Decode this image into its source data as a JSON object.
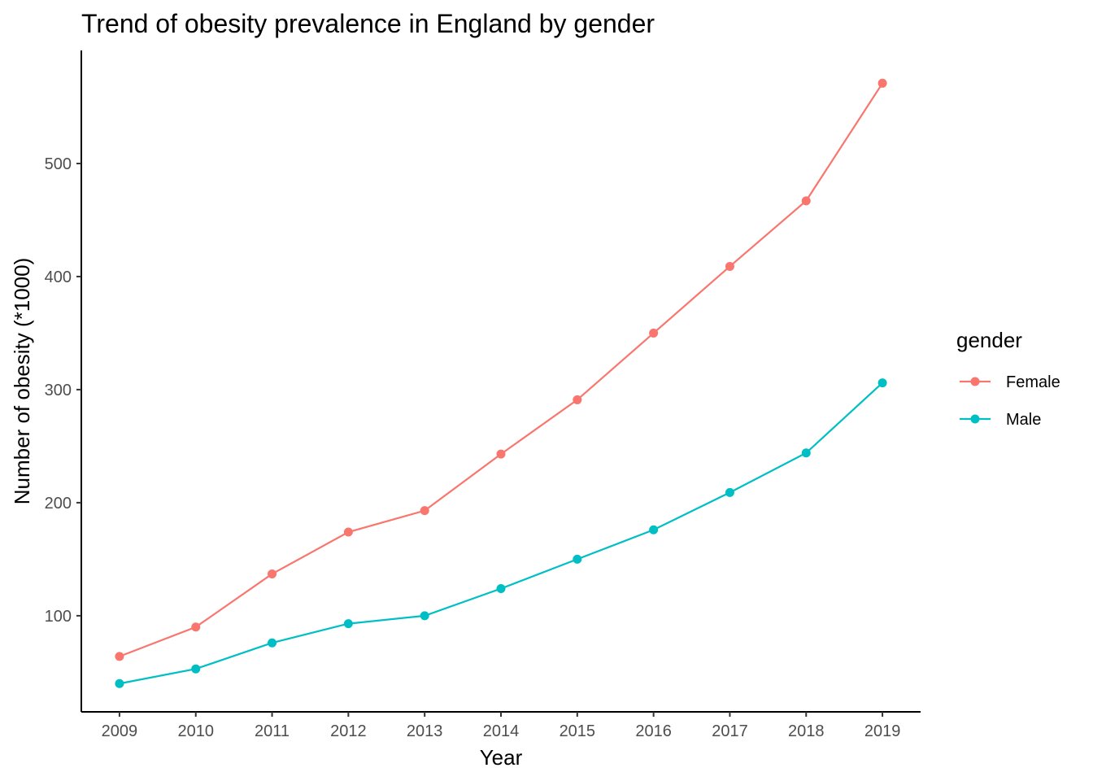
{
  "chart_data": {
    "type": "line",
    "title": "Trend of obesity prevalence in England by gender",
    "xlabel": "Year",
    "ylabel": "Number of obesity (*1000)",
    "x": [
      2009,
      2010,
      2011,
      2012,
      2013,
      2014,
      2015,
      2016,
      2017,
      2018,
      2019
    ],
    "x_tick_labels": [
      "2009",
      "2010",
      "2011",
      "2012",
      "2013",
      "2014",
      "2015",
      "2016",
      "2017",
      "2018",
      "2019"
    ],
    "y_ticks": [
      100,
      200,
      300,
      400,
      500
    ],
    "y_tick_labels": [
      "100",
      "200",
      "300",
      "400",
      "500"
    ],
    "xlim": [
      2008.5,
      2019.5
    ],
    "ylim": [
      15,
      600
    ],
    "grid": false,
    "legend": {
      "title": "gender",
      "placement": "right"
    },
    "series": [
      {
        "name": "Female",
        "color": "#F8766D",
        "values": [
          64,
          90,
          137,
          174,
          193,
          243,
          291,
          350,
          409,
          467,
          571
        ]
      },
      {
        "name": "Male",
        "color": "#00BFC4",
        "values": [
          40,
          53,
          76,
          93,
          100,
          124,
          150,
          176,
          209,
          244,
          306
        ]
      }
    ]
  }
}
